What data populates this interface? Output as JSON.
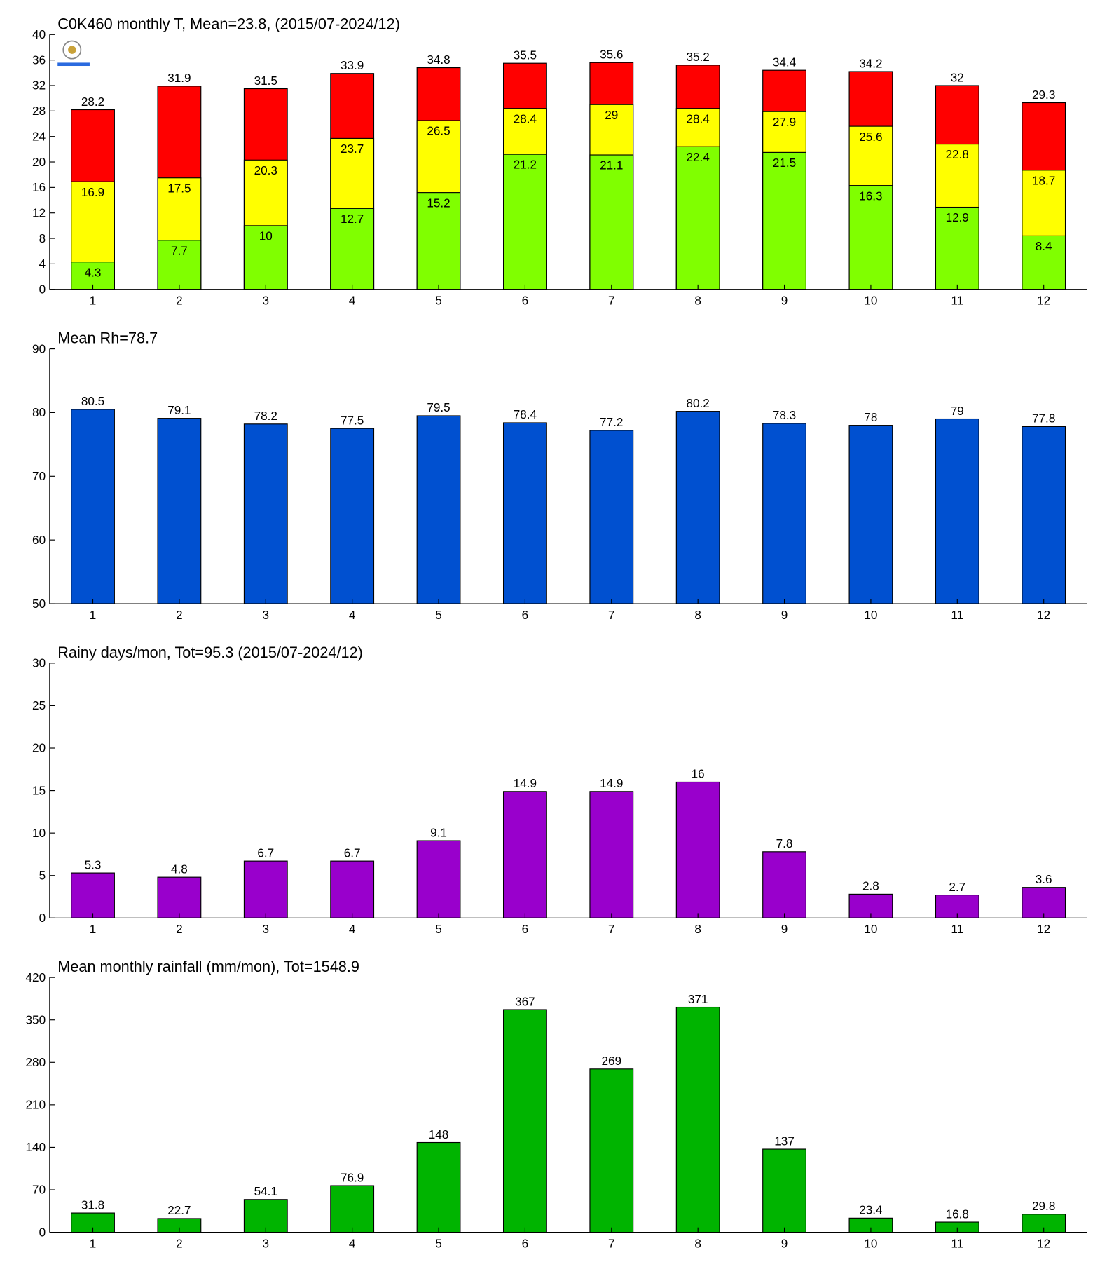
{
  "chart_data": [
    {
      "type": "bar",
      "title": "C0K460 monthly T, Mean=23.8, (2015/07-2024/12)",
      "categories": [
        "1",
        "2",
        "3",
        "4",
        "5",
        "6",
        "7",
        "8",
        "9",
        "10",
        "11",
        "12"
      ],
      "series": [
        {
          "color": "#ff0000",
          "values": [
            28.2,
            31.9,
            31.5,
            33.9,
            34.8,
            35.5,
            35.6,
            35.2,
            34.4,
            34.2,
            32,
            29.3
          ]
        },
        {
          "color": "#ffff00",
          "values": [
            16.9,
            17.5,
            20.3,
            23.7,
            26.5,
            28.4,
            29,
            28.4,
            27.9,
            25.6,
            22.8,
            18.7
          ]
        },
        {
          "color": "#80ff00",
          "values": [
            4.3,
            7.7,
            10,
            12.7,
            15.2,
            21.2,
            21.1,
            22.4,
            21.5,
            16.3,
            12.9,
            8.4
          ]
        }
      ],
      "ylim": [
        0,
        40
      ],
      "yticks": [
        0,
        4,
        8,
        12,
        16,
        20,
        24,
        28,
        32,
        36,
        40
      ]
    },
    {
      "type": "bar",
      "title": "Mean Rh=78.7",
      "categories": [
        "1",
        "2",
        "3",
        "4",
        "5",
        "6",
        "7",
        "8",
        "9",
        "10",
        "11",
        "12"
      ],
      "series": [
        {
          "color": "#0050d0",
          "values": [
            80.5,
            79.1,
            78.2,
            77.5,
            79.5,
            78.4,
            77.2,
            80.2,
            78.3,
            78,
            79,
            77.8
          ]
        }
      ],
      "ylim": [
        50,
        90
      ],
      "yticks": [
        50,
        60,
        70,
        80,
        90
      ]
    },
    {
      "type": "bar",
      "title": "Rainy days/mon, Tot=95.3 (2015/07-2024/12)",
      "categories": [
        "1",
        "2",
        "3",
        "4",
        "5",
        "6",
        "7",
        "8",
        "9",
        "10",
        "11",
        "12"
      ],
      "series": [
        {
          "color": "#9900cc",
          "values": [
            5.3,
            4.8,
            6.7,
            6.7,
            9.1,
            14.9,
            14.9,
            16,
            7.8,
            2.8,
            2.7,
            3.6
          ]
        }
      ],
      "ylim": [
        0,
        30
      ],
      "yticks": [
        0,
        5,
        10,
        15,
        20,
        25,
        30
      ]
    },
    {
      "type": "bar",
      "title": "Mean monthly rainfall (mm/mon), Tot=1548.9",
      "categories": [
        "1",
        "2",
        "3",
        "4",
        "5",
        "6",
        "7",
        "8",
        "9",
        "10",
        "11",
        "12"
      ],
      "series": [
        {
          "color": "#00b400",
          "values": [
            31.8,
            22.7,
            54.1,
            76.9,
            148,
            367,
            269,
            371,
            137,
            23.4,
            16.8,
            29.8
          ]
        }
      ],
      "ylim": [
        0,
        420
      ],
      "yticks": [
        0,
        70,
        140,
        210,
        280,
        350,
        420
      ]
    }
  ]
}
